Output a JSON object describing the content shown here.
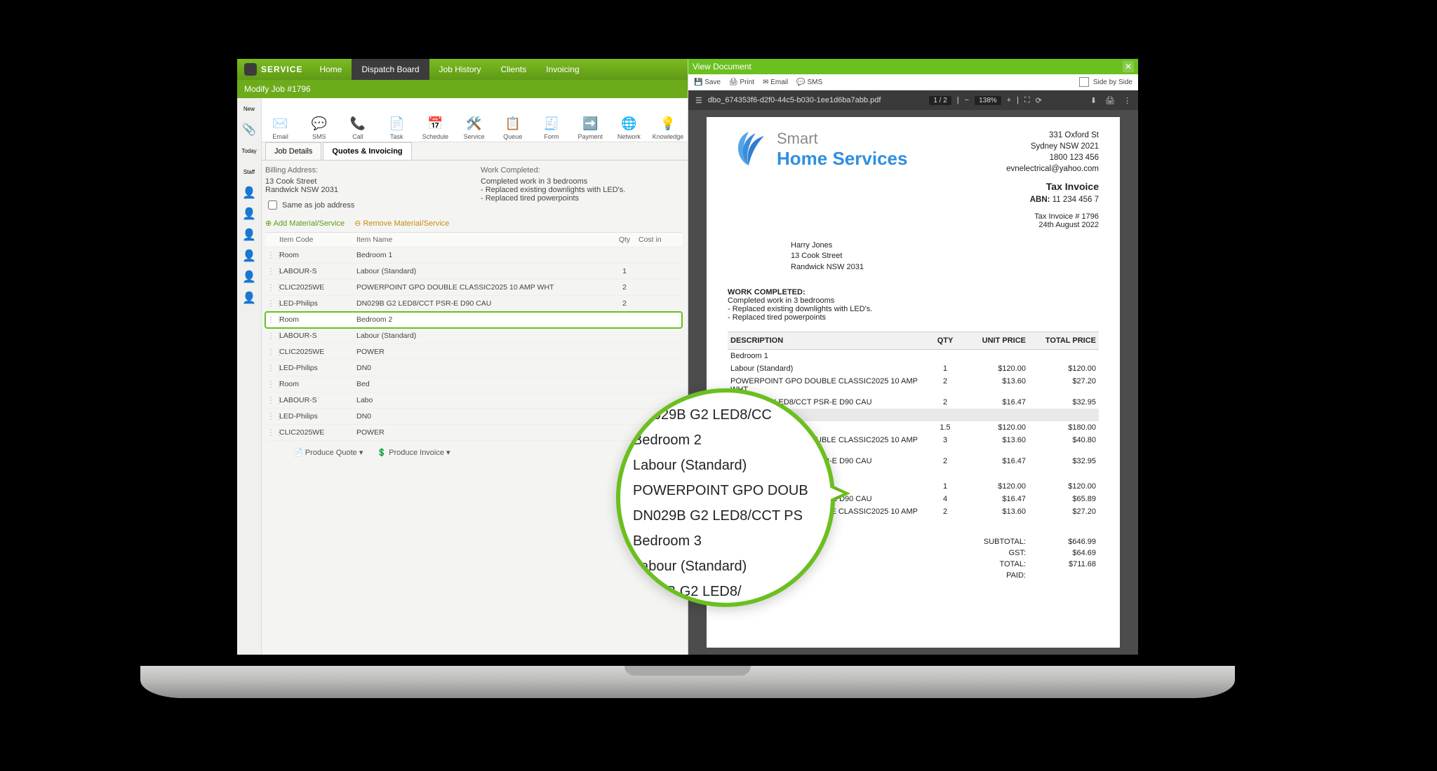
{
  "brand": {
    "name": "SERVICE"
  },
  "nav": {
    "items": [
      "Home",
      "Dispatch Board",
      "Job History",
      "Clients",
      "Invoicing"
    ],
    "active_index": 1
  },
  "subheader": {
    "title": "Modify Job #1796"
  },
  "tools": [
    {
      "label": "Email",
      "icon": "✉️",
      "name": "tool-email"
    },
    {
      "label": "SMS",
      "icon": "💬",
      "name": "tool-sms"
    },
    {
      "label": "Call",
      "icon": "📞",
      "name": "tool-call"
    },
    {
      "label": "Task",
      "icon": "📄",
      "name": "tool-task"
    },
    {
      "label": "Schedule",
      "icon": "📅",
      "name": "tool-schedule"
    },
    {
      "label": "Service",
      "icon": "🛠️",
      "name": "tool-service"
    },
    {
      "label": "Queue",
      "icon": "📋",
      "name": "tool-queue"
    },
    {
      "label": "Form",
      "icon": "🧾",
      "name": "tool-form"
    },
    {
      "label": "Payment",
      "icon": "➡️",
      "name": "tool-payment"
    },
    {
      "label": "Network",
      "icon": "🌐",
      "name": "tool-network"
    },
    {
      "label": "Knowledge",
      "icon": "💡",
      "name": "tool-knowledge"
    }
  ],
  "narrow": [
    "New",
    "📎",
    "Today",
    "Staff",
    "👤",
    "👤",
    "👤",
    "👤",
    "👤",
    "👤"
  ],
  "tabs": {
    "items": [
      "Job Details",
      "Quotes & Invoicing"
    ],
    "active_index": 1
  },
  "billing": {
    "label": "Billing Address:",
    "lines": [
      "13 Cook Street",
      "Randwick NSW 2031"
    ],
    "same_as_label": "Same as job address"
  },
  "work": {
    "label": "Work Completed:",
    "lines": [
      "Completed work in 3 bedrooms",
      "- Replaced existing downlights with LED's.",
      "- Replaced tired powerpoints"
    ]
  },
  "table_actions": {
    "add": "Add Material/Service",
    "remove": "Remove Material/Service"
  },
  "columns": {
    "code": "Item Code",
    "name": "Item Name",
    "qty": "Qty",
    "cost": "Cost in"
  },
  "items": [
    {
      "code": "Room",
      "name": "Bedroom 1",
      "qty": "",
      "highlight": false
    },
    {
      "code": "LABOUR-S",
      "name": "Labour (Standard)",
      "qty": "1",
      "highlight": false
    },
    {
      "code": "CLIC2025WE",
      "name": "POWERPOINT GPO DOUBLE CLASSIC2025 10 AMP WHT",
      "qty": "2",
      "highlight": false
    },
    {
      "code": "LED-Philips",
      "name": "DN029B G2 LED8/CCT PSR-E D90 CAU",
      "qty": "2",
      "highlight": false
    },
    {
      "code": "Room",
      "name": "Bedroom 2",
      "qty": "",
      "highlight": true
    },
    {
      "code": "LABOUR-S",
      "name": "Labour (Standard)",
      "qty": "",
      "highlight": false
    },
    {
      "code": "CLIC2025WE",
      "name": "POWER",
      "qty": "",
      "highlight": false
    },
    {
      "code": "LED-Philips",
      "name": "DN0",
      "qty": "",
      "highlight": false
    },
    {
      "code": "Room",
      "name": "Bed",
      "qty": "",
      "highlight": false
    },
    {
      "code": "LABOUR-S",
      "name": "Labo",
      "qty": "",
      "highlight": false
    },
    {
      "code": "LED-Philips",
      "name": "DN0",
      "qty": "",
      "highlight": false
    },
    {
      "code": "CLIC2025WE",
      "name": "POWER",
      "qty": "",
      "highlight": false
    }
  ],
  "bottom_actions": {
    "quote": "Produce Quote ▾",
    "invoice": "Produce Invoice ▾"
  },
  "magnifier": {
    "lines": [
      "DN029B G2 LED8/CC",
      "Bedroom 2",
      "Labour (Standard)",
      "POWERPOINT GPO DOUB",
      "DN029B G2 LED8/CCT PS",
      "Bedroom 3",
      "Labour (Standard)",
      "N029B G2 LED8/"
    ]
  },
  "viewdoc": {
    "title": "View Document"
  },
  "doc_actions": {
    "save": "Save",
    "print": "Print",
    "email": "Email",
    "sms": "SMS",
    "side": "Side by Side"
  },
  "pdf_chrome": {
    "filename": "dbo_674353f6-d2f0-44c5-b030-1ee1d6ba7abb.pdf",
    "page": "1 / 2",
    "zoom": "138%"
  },
  "invoice": {
    "company": {
      "line1": "Smart",
      "line2": "Home Services"
    },
    "org": {
      "addr1": "331 Oxford St",
      "addr2": "Sydney NSW 2021",
      "phone": "1800 123 456",
      "email": "evnelectrical@yahoo.com",
      "title": "Tax Invoice",
      "abn_label": "ABN:",
      "abn": "11 234 456 7"
    },
    "meta": {
      "number": "Tax Invoice # 1796",
      "date": "24th August 2022"
    },
    "customer": {
      "name": "Harry Jones",
      "addr1": "13 Cook Street",
      "addr2": "Randwick NSW 2031"
    },
    "work_header": "WORK COMPLETED:",
    "work_lines": [
      "Completed work in 3 bedrooms",
      "- Replaced existing downlights with LED's.",
      "- Replaced tired powerpoints"
    ],
    "cols": {
      "desc": "DESCRIPTION",
      "qty": "QTY",
      "unit": "UNIT PRICE",
      "total": "TOTAL PRICE"
    },
    "rows": [
      {
        "desc": "Bedroom 1",
        "qty": "",
        "unit": "",
        "total": "",
        "room": true,
        "hl": false
      },
      {
        "desc": "Labour (Standard)",
        "qty": "1",
        "unit": "$120.00",
        "total": "$120.00"
      },
      {
        "desc": "POWERPOINT GPO DOUBLE CLASSIC2025 10 AMP WHT",
        "qty": "2",
        "unit": "$13.60",
        "total": "$27.20"
      },
      {
        "desc": "DN029B G2 LED8/CCT PSR-E D90 CAU",
        "qty": "2",
        "unit": "$16.47",
        "total": "$32.95"
      },
      {
        "desc": "Bedroom 2",
        "qty": "",
        "unit": "",
        "total": "",
        "room": true,
        "hl": true
      },
      {
        "desc": "Labour (Standard)",
        "qty": "1.5",
        "unit": "$120.00",
        "total": "$180.00"
      },
      {
        "desc": "POWERPOINT GPO DOUBLE CLASSIC2025 10 AMP WHT",
        "qty": "3",
        "unit": "$13.60",
        "total": "$40.80"
      },
      {
        "desc": "DN029B G2 LED8/CCT PSR-E D90 CAU",
        "qty": "2",
        "unit": "$16.47",
        "total": "$32.95"
      },
      {
        "desc": "Bedroom 3",
        "qty": "",
        "unit": "",
        "total": "",
        "room": true,
        "hl": false
      },
      {
        "desc": "Labour (Standard)",
        "qty": "1",
        "unit": "$120.00",
        "total": "$120.00"
      },
      {
        "desc": "DN029B G2 LED8/CCT PSR-E D90 CAU",
        "qty": "4",
        "unit": "$16.47",
        "total": "$65.89"
      },
      {
        "desc": "POWERPOINT GPO DOUBLE CLASSIC2025 10 AMP WHT",
        "qty": "2",
        "unit": "$13.60",
        "total": "$27.20"
      }
    ],
    "totals": {
      "subtotal_label": "SUBTOTAL:",
      "subtotal": "$646.99",
      "gst_label": "GST:",
      "gst": "$64.69",
      "total_label": "TOTAL:",
      "total": "$711.68",
      "paid_label": "PAID:",
      "paid": ""
    }
  },
  "colors": {
    "brand_green": "#6bbf1f",
    "brand_green_dark": "#5f9a17",
    "nav_active": "#3c3c3c",
    "pdf_bg": "#4c4c4c",
    "blue": "#2f8fe0"
  }
}
